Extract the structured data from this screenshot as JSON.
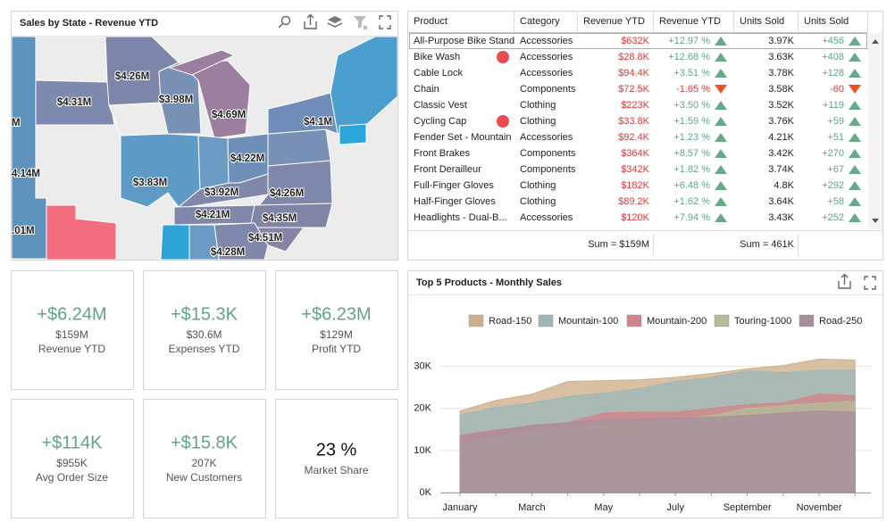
{
  "map_panel": {
    "title": "Sales by State - Revenue YTD",
    "labels": [
      "$4.26M",
      "$4.31M",
      "$3.98M",
      "$4.69M",
      "M",
      "$4.1M",
      "4.14M",
      "$4.22M",
      "$3.83M",
      "$3.92M",
      "$4.26M",
      "$4.21M",
      "$4.35M",
      "$4.51M",
      ".01M",
      "$4.28M"
    ]
  },
  "grid": {
    "columns": [
      "Product",
      "Category",
      "Revenue YTD",
      "Revenue YTD",
      "Units Sold",
      "Units Sold"
    ],
    "rows": [
      [
        "All-Purpose Bike Stand",
        "Accessories",
        "$632K",
        "+12.97 %",
        "3.97K",
        "+456"
      ],
      [
        "Bike Wash",
        "Accessories",
        "$28.8K",
        "+12.68 %",
        "3.63K",
        "+408"
      ],
      [
        "Cable Lock",
        "Accessories",
        "$94.4K",
        "+3.51 %",
        "3.78K",
        "+128"
      ],
      [
        "Chain",
        "Components",
        "$72.5K",
        "-1.65 %",
        "3.58K",
        "-60"
      ],
      [
        "Classic Vest",
        "Clothing",
        "$223K",
        "+3.50 %",
        "3.52K",
        "+119"
      ],
      [
        "Cycling Cap",
        "Clothing",
        "$33.8K",
        "+1.59 %",
        "3.76K",
        "+59"
      ],
      [
        "Fender Set - Mountain",
        "Accessories",
        "$92.4K",
        "+1.23 %",
        "4.21K",
        "+51"
      ],
      [
        "Front Brakes",
        "Components",
        "$364K",
        "+8.57 %",
        "3.42K",
        "+270"
      ],
      [
        "Front Derailleur",
        "Components",
        "$342K",
        "+1.82 %",
        "3.74K",
        "+67"
      ],
      [
        "Full-Finger Gloves",
        "Clothing",
        "$182K",
        "+6.48 %",
        "4.8K",
        "+292"
      ],
      [
        "Half-Finger Gloves",
        "Clothing",
        "$89.2K",
        "+1.62 %",
        "3.64K",
        "+58"
      ],
      [
        "Headlights - Dual-B...",
        "Accessories",
        "$120K",
        "+7.94 %",
        "3.43K",
        "+252"
      ]
    ],
    "footer": [
      "Sum = $159M",
      "Sum = 461K"
    ]
  },
  "cards": [
    {
      "delta": "+$6.24M",
      "value": "$159M",
      "label": "Revenue YTD"
    },
    {
      "delta": "+$15.3K",
      "value": "$30.6M",
      "label": "Expenses YTD"
    },
    {
      "delta": "+$6.23M",
      "value": "$129M",
      "label": "Profit YTD"
    },
    {
      "delta": "+$114K",
      "value": "$955K",
      "label": "Avg Order Size"
    },
    {
      "delta": "+$15.8K",
      "value": "207K",
      "label": "New Customers"
    },
    {
      "value": "23 %",
      "label": "Market Share"
    }
  ],
  "chart_data": {
    "type": "area",
    "title": "Top 5 Products - Monthly Sales",
    "categories": [
      "January",
      null,
      "March",
      null,
      "May",
      null,
      "July",
      null,
      "September",
      null,
      "November",
      null
    ],
    "series": [
      {
        "name": "Road-150",
        "color": "#cfb08c",
        "values": [
          19400,
          21900,
          23400,
          26400,
          26600,
          26800,
          27400,
          28300,
          29400,
          30200,
          31700,
          31500
        ]
      },
      {
        "name": "Mountain-100",
        "color": "#9fb6b8",
        "values": [
          18500,
          20200,
          21300,
          22800,
          23600,
          24700,
          26400,
          27400,
          28900,
          28500,
          29100,
          29100
        ]
      },
      {
        "name": "Mountain-200",
        "color": "#d2848b",
        "values": [
          13600,
          14900,
          15700,
          16600,
          18900,
          19100,
          19100,
          20000,
          20900,
          21300,
          23400,
          23000
        ]
      },
      {
        "name": "Touring-1000",
        "color": "#b3bb98",
        "values": [
          11500,
          13000,
          14500,
          15500,
          16500,
          17000,
          17500,
          18300,
          20000,
          20600,
          21300,
          21700
        ]
      },
      {
        "name": "Road-250",
        "color": "#a88e9c",
        "values": [
          13200,
          14700,
          16000,
          16600,
          17400,
          17400,
          17700,
          17900,
          18300,
          18900,
          19400,
          19100
        ]
      }
    ],
    "ylim": [
      0,
      35000
    ],
    "yticks": [
      {
        "value": 0,
        "label": "0K"
      },
      {
        "value": 10000,
        "label": "10K"
      },
      {
        "value": 20000,
        "label": "20K"
      },
      {
        "value": 30000,
        "label": "30K"
      }
    ],
    "grid": true,
    "legend": "top"
  }
}
